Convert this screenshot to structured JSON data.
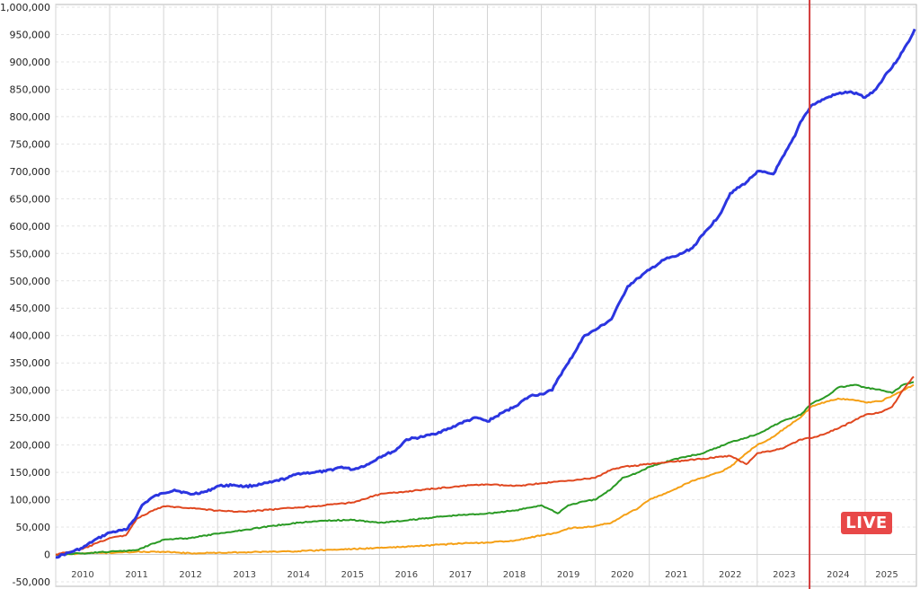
{
  "chart_data": {
    "type": "line",
    "title": "",
    "xlabel": "",
    "ylabel": "",
    "ylim": [
      -50000,
      1000000
    ],
    "xlim": [
      2009.5,
      2025.45
    ],
    "y_ticks": [
      -50000,
      0,
      50000,
      100000,
      150000,
      200000,
      250000,
      300000,
      350000,
      400000,
      450000,
      500000,
      550000,
      600000,
      650000,
      700000,
      750000,
      800000,
      850000,
      900000,
      950000,
      1000000
    ],
    "y_tick_labels": [
      "-50,000",
      "0",
      "50,000",
      "100,000",
      "150,000",
      "200,000",
      "250,000",
      "300,000",
      "350,000",
      "400,000",
      "450,000",
      "500,000",
      "550,000",
      "600,000",
      "650,000",
      "700,000",
      "750,000",
      "800,000",
      "850,000",
      "900,000",
      "950,000",
      "1,000,000"
    ],
    "x_year_labels": [
      "2010",
      "2011",
      "2012",
      "2013",
      "2014",
      "2015",
      "2016",
      "2017",
      "2018",
      "2019",
      "2020",
      "2021",
      "2022",
      "2023",
      "2024",
      "2025"
    ],
    "x_year_label_positions": [
      2010.0,
      2011.0,
      2012.0,
      2013.0,
      2014.0,
      2015.0,
      2016.0,
      2017.0,
      2018.0,
      2019.0,
      2020.0,
      2021.0,
      2022.0,
      2023.0,
      2024.0,
      2024.9
    ],
    "x_gridlines": [
      2009.5,
      2010.5,
      2011.5,
      2012.5,
      2013.5,
      2014.5,
      2015.5,
      2016.5,
      2017.5,
      2018.5,
      2019.5,
      2020.5,
      2021.5,
      2022.5,
      2024.5
    ],
    "grid": true,
    "live_marker": {
      "x": 2023.47,
      "label": "LIVE",
      "color": "#d23a3a"
    },
    "series": [
      {
        "color": "#2b35e0",
        "width": 3,
        "x": [
          2009.5,
          2009.8,
          2010.0,
          2010.2,
          2010.5,
          2010.8,
          2011.0,
          2011.1,
          2011.3,
          2011.5,
          2011.7,
          2012.0,
          2012.3,
          2012.5,
          2012.8,
          2013.0,
          2013.3,
          2013.5,
          2013.8,
          2014.0,
          2014.3,
          2014.5,
          2014.8,
          2015.0,
          2015.3,
          2015.5,
          2015.8,
          2016.0,
          2016.3,
          2016.5,
          2016.8,
          2017.0,
          2017.3,
          2017.5,
          2017.8,
          2018.0,
          2018.3,
          2018.5,
          2018.7,
          2018.8,
          2019.0,
          2019.3,
          2019.5,
          2019.8,
          2020.0,
          2020.1,
          2020.3,
          2020.5,
          2020.8,
          2021.0,
          2021.3,
          2021.5,
          2021.8,
          2022.0,
          2022.3,
          2022.5,
          2022.8,
          2023.0,
          2023.2,
          2023.3,
          2023.5,
          2023.8,
          2024.0,
          2024.2,
          2024.4,
          2024.5,
          2024.7,
          2024.9,
          2025.0,
          2025.2,
          2025.35,
          2025.42
        ],
        "y": [
          -5000,
          5000,
          12000,
          25000,
          40000,
          45000,
          70000,
          90000,
          105000,
          112000,
          118000,
          110000,
          115000,
          125000,
          127000,
          124000,
          128000,
          132000,
          140000,
          148000,
          150000,
          152000,
          160000,
          155000,
          165000,
          178000,
          190000,
          210000,
          215000,
          220000,
          230000,
          240000,
          250000,
          243000,
          260000,
          270000,
          290000,
          293000,
          300000,
          320000,
          350000,
          400000,
          410000,
          430000,
          470000,
          490000,
          505000,
          520000,
          540000,
          545000,
          560000,
          585000,
          620000,
          660000,
          680000,
          700000,
          695000,
          730000,
          765000,
          790000,
          820000,
          835000,
          842000,
          845000,
          840000,
          835000,
          850000,
          880000,
          890000,
          920000,
          945000,
          960000
        ]
      },
      {
        "color": "#e0471f",
        "width": 2,
        "x": [
          2009.5,
          2010.0,
          2010.5,
          2010.8,
          2011.0,
          2011.3,
          2011.5,
          2012.0,
          2012.5,
          2013.0,
          2013.5,
          2014.0,
          2014.5,
          2015.0,
          2015.5,
          2016.0,
          2016.5,
          2017.0,
          2017.5,
          2018.0,
          2018.5,
          2019.0,
          2019.5,
          2019.8,
          2020.0,
          2020.5,
          2021.0,
          2021.5,
          2022.0,
          2022.3,
          2022.5,
          2022.8,
          2023.0,
          2023.3,
          2023.6,
          2024.0,
          2024.3,
          2024.5,
          2024.8,
          2025.0,
          2025.2,
          2025.4
        ],
        "y": [
          0,
          10000,
          30000,
          35000,
          65000,
          80000,
          88000,
          85000,
          80000,
          78000,
          82000,
          86000,
          90000,
          95000,
          110000,
          115000,
          120000,
          125000,
          128000,
          125000,
          130000,
          135000,
          140000,
          155000,
          160000,
          165000,
          170000,
          175000,
          180000,
          165000,
          185000,
          190000,
          195000,
          210000,
          215000,
          230000,
          245000,
          255000,
          260000,
          270000,
          300000,
          325000
        ]
      },
      {
        "color": "#2a9a24",
        "width": 2,
        "x": [
          2009.5,
          2010.0,
          2010.5,
          2011.0,
          2011.3,
          2011.5,
          2012.0,
          2012.5,
          2013.0,
          2013.5,
          2014.0,
          2014.5,
          2015.0,
          2015.5,
          2016.0,
          2016.5,
          2017.0,
          2017.5,
          2018.0,
          2018.5,
          2018.8,
          2019.0,
          2019.3,
          2019.5,
          2019.8,
          2020.0,
          2020.3,
          2020.5,
          2021.0,
          2021.5,
          2022.0,
          2022.5,
          2022.8,
          2023.0,
          2023.3,
          2023.5,
          2023.8,
          2024.0,
          2024.3,
          2024.5,
          2024.8,
          2025.0,
          2025.2,
          2025.4
        ],
        "y": [
          0,
          2000,
          5000,
          8000,
          20000,
          27000,
          30000,
          38000,
          45000,
          52000,
          58000,
          62000,
          63000,
          58000,
          62000,
          68000,
          72000,
          75000,
          80000,
          90000,
          75000,
          90000,
          97000,
          100000,
          120000,
          140000,
          150000,
          160000,
          175000,
          185000,
          205000,
          220000,
          235000,
          245000,
          255000,
          275000,
          290000,
          305000,
          310000,
          305000,
          300000,
          295000,
          310000,
          315000
        ]
      },
      {
        "color": "#f5a016",
        "width": 2,
        "x": [
          2009.5,
          2010.0,
          2010.5,
          2011.0,
          2011.5,
          2012.0,
          2012.5,
          2013.0,
          2013.5,
          2014.0,
          2014.5,
          2015.0,
          2015.5,
          2016.0,
          2016.5,
          2017.0,
          2017.5,
          2018.0,
          2018.5,
          2018.8,
          2019.0,
          2019.3,
          2019.5,
          2019.8,
          2020.0,
          2020.3,
          2020.5,
          2021.0,
          2021.3,
          2021.5,
          2021.8,
          2022.0,
          2022.3,
          2022.5,
          2022.8,
          2023.0,
          2023.3,
          2023.5,
          2023.8,
          2024.0,
          2024.3,
          2024.5,
          2024.8,
          2025.0,
          2025.2,
          2025.4
        ],
        "y": [
          0,
          2000,
          3000,
          5000,
          5000,
          2000,
          3000,
          4000,
          5000,
          6000,
          8000,
          10000,
          12000,
          14000,
          17000,
          20000,
          22000,
          25000,
          35000,
          40000,
          48000,
          50000,
          52000,
          58000,
          70000,
          85000,
          100000,
          120000,
          135000,
          140000,
          150000,
          160000,
          185000,
          200000,
          215000,
          230000,
          250000,
          270000,
          280000,
          285000,
          282000,
          278000,
          280000,
          290000,
          300000,
          310000
        ]
      }
    ]
  }
}
